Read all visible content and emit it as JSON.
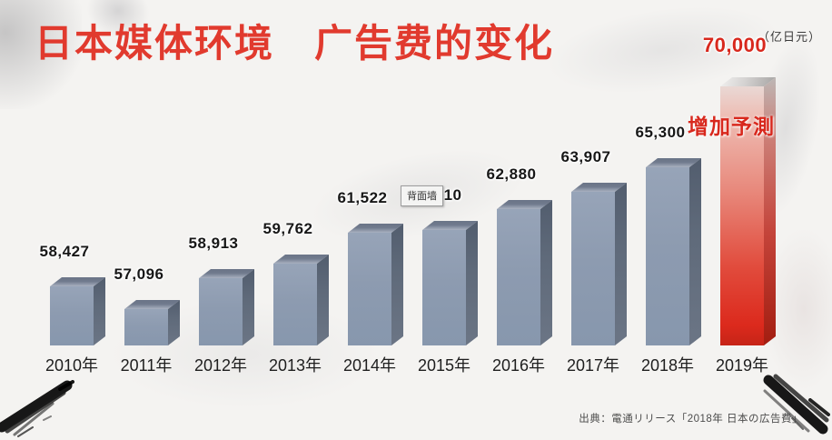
{
  "title": "日本媒体环境　广告费的变化",
  "unit_label": "（亿日元）",
  "annotation": {
    "forecast_label": "增加予測"
  },
  "tooltip_text": "背面墙",
  "source": "出典：電通リリース「2018年 日本の広告費」",
  "colors": {
    "title_red": "#e13a2e",
    "forecast_red": "#d8281d",
    "bar_front": "#8d9bb0",
    "bar_side": "#5f6a7a",
    "bar_top": "#707a8d",
    "background": "#f4f3f1",
    "label_text": "#171717"
  },
  "chart_data": {
    "type": "bar",
    "title": "日本媒体环境　广告费的变化",
    "xlabel": "年",
    "ylabel": "亿日元",
    "categories": [
      "2010年",
      "2011年",
      "2012年",
      "2013年",
      "2014年",
      "2015年",
      "2016年",
      "2017年",
      "2018年",
      "2019年"
    ],
    "values": [
      58427,
      57096,
      58913,
      59762,
      61522,
      61710,
      62880,
      63907,
      65300,
      70000
    ],
    "value_labels": [
      "58,427",
      "57,096",
      "58,913",
      "59,762",
      "61,522",
      "61,710",
      "62,880",
      "63,907",
      "65,300",
      "70,000"
    ],
    "highlight_index": 9,
    "highlight_meaning": "增加予測",
    "ylim": [
      55000,
      70000
    ],
    "grid": false,
    "legend": false,
    "style": "3d-column, value labels above bars, 2019 forecast bar in red gradient"
  }
}
